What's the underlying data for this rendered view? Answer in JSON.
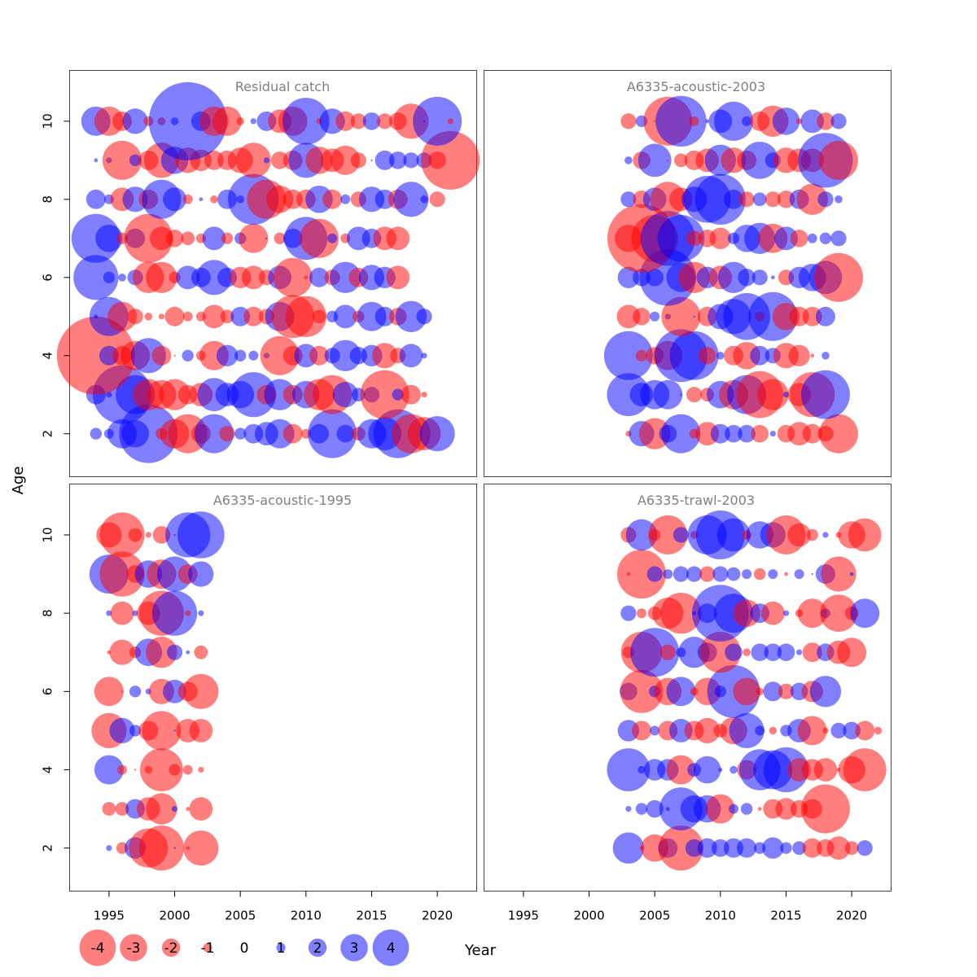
{
  "chart_data": {
    "type": "scatter",
    "subtype": "bubble-residuals",
    "ylabel": "Age",
    "xlabel": "Year",
    "xlim": [
      1992,
      2023
    ],
    "ylim": [
      0.9,
      11.3
    ],
    "x_ticks": [
      1995,
      2000,
      2005,
      2010,
      2015,
      2020
    ],
    "y_ticks": [
      2,
      4,
      6,
      8,
      10
    ],
    "ages": [
      2,
      3,
      4,
      5,
      6,
      7,
      8,
      9,
      10
    ],
    "colors": {
      "negative": "#FF0000",
      "positive": "#0000FF",
      "opacity": 0.5
    },
    "legend": {
      "values": [
        -4,
        -3,
        -2,
        -1,
        0,
        1,
        2,
        3,
        4
      ],
      "labels": [
        "-4",
        "-3",
        "-2",
        "-1",
        "0",
        "1",
        "2",
        "3",
        "4"
      ]
    },
    "panels": [
      {
        "title": "Residual catch",
        "x_start": 1994,
        "residuals": {
          "10": [
            1.5,
            -1.5,
            -1.0,
            1.3,
            -0.5,
            -0.4,
            0.4,
            4.0,
            1.0,
            -1.5,
            -1.5,
            -0.4,
            0.3,
            1.0,
            -1.2,
            -1.5,
            2.4,
            -0.3,
            1.3,
            -1.0,
            -0.8,
            0.9,
            -0.8,
            -0.9,
            -1.8,
            0.1,
            2.5,
            -0.3
          ],
          "9": [
            0.2,
            0.3,
            -2.0,
            0.6,
            -1.0,
            -1.8,
            1.4,
            -1.3,
            -1.1,
            -1.0,
            -1.0,
            -1.3,
            -1.8,
            0.3,
            -0.9,
            -1.0,
            1.8,
            -1.4,
            -1.2,
            -1.5,
            -0.8,
            0.1,
            1.0,
            0.9,
            0.8,
            0.8,
            -0.9,
            -3.0
          ],
          "8": [
            1.0,
            0.5,
            -1.2,
            1.3,
            -1.0,
            2.0,
            1.2,
            -0.5,
            0.2,
            -0.4,
            1.0,
            0.4,
            2.6,
            -2.0,
            -1.4,
            -1.0,
            -1.0,
            1.4,
            -1.0,
            0.5,
            -0.8,
            1.3,
            1.0,
            -1.0,
            1.8,
            0.4,
            -0.8
          ],
          "7": [
            2.5,
            1.4,
            -0.6,
            1.0,
            -2.5,
            -1.2,
            -0.9,
            -0.7,
            -0.5,
            1.2,
            -0.6,
            0.6,
            -1.5,
            0.1,
            -0.6,
            1.0,
            2.2,
            -2.0,
            0.5,
            -0.5,
            1.2,
            1.0,
            -1.2,
            -1.2
          ],
          "6": [
            2.3,
            0.6,
            0.4,
            0.8,
            -1.6,
            -1.6,
            -0.6,
            1.2,
            1.0,
            1.8,
            1.0,
            -1.1,
            -1.2,
            -0.8,
            1.2,
            -2.0,
            -0.2,
            1.0,
            -0.8,
            1.6,
            -1.0,
            1.3,
            1.1,
            -1.2
          ],
          "5": [
            0.2,
            2.0,
            -1.5,
            -0.8,
            -0.4,
            -0.3,
            -1.0,
            -0.5,
            -0.5,
            -1.2,
            -0.7,
            1.0,
            -1.0,
            -0.8,
            1.5,
            -2.2,
            -2.1,
            -0.7,
            0.6,
            1.2,
            -0.6,
            1.5,
            1.0,
            -0.9,
            1.6,
            0.8
          ],
          "4": [
            -4.0,
            1.0,
            -1.0,
            -1.5,
            1.8,
            -1.0,
            -0.1,
            0.6,
            -0.5,
            -1.5,
            1.1,
            0.6,
            0.5,
            0.3,
            -2.0,
            -1.0,
            1.2,
            -1.0,
            0.8,
            1.6,
            0.9,
            1.1,
            -1.3,
            -0.8,
            1.2,
            0.3
          ],
          "3": [
            1.0,
            0.3,
            3.0,
            2.0,
            -1.6,
            -1.5,
            -1.6,
            -1.0,
            -1.2,
            1.7,
            1.2,
            1.4,
            2.3,
            -1.0,
            1.6,
            -1.0,
            1.4,
            -1.6,
            -2.0,
            1.3,
            0.7,
            0.8,
            -2.5,
            0.6,
            -1.0,
            -0.3
          ],
          "2": [
            0.6,
            0.5,
            1.5,
            1.4,
            3.0,
            -0.6,
            -1.5,
            -2.0,
            -1.0,
            2.0,
            -0.8,
            0.6,
            1.0,
            1.2,
            1.5,
            -1.0,
            -0.5,
            1.0,
            2.5,
            0.9,
            -0.7,
            1.5,
            1.7,
            2.5,
            -2.0,
            -1.7,
            1.8
          ]
        }
      },
      {
        "title": "A6335-acoustic-2003",
        "x_start": 2003,
        "residuals": {
          "10": [
            -0.8,
            0.6,
            -0.1,
            -2.5,
            2.6,
            -0.5,
            0.2,
            1.2,
            2.0,
            0.5,
            -1.0,
            -1.6,
            1.4,
            -0.3,
            1.2,
            -0.9,
            0.8
          ],
          "9": [
            0.4,
            -0.9,
            1.7,
            -0.1,
            -0.7,
            -1.0,
            -1.2,
            1.6,
            -1.3,
            -1.0,
            1.9,
            0.8,
            -1.3,
            -1.2,
            -1.2,
            2.8,
            -2.0
          ],
          "8": [
            0.8,
            -0.9,
            1.2,
            -1.8,
            -1.2,
            1.3,
            2.4,
            2.6,
            1.0,
            -0.8,
            0.7,
            -0.8,
            -0.9,
            1.0,
            -1.6,
            0.8,
            0.4
          ],
          "7": [
            -1.4,
            -3.5,
            -2.4,
            2.8,
            2.4,
            -0.8,
            -0.9,
            -1.1,
            0.6,
            1.4,
            1.6,
            -1.5,
            1.2,
            -0.9,
            0.5,
            0.6,
            0.8
          ],
          "6": [
            1.1,
            0.9,
            0.9,
            2.9,
            1.5,
            -1.6,
            1.1,
            -1.2,
            1.6,
            0.9,
            0.8,
            0.2,
            -0.8,
            1.1,
            1.4,
            1.7,
            -2.5
          ],
          "5": [
            -1.2,
            -0.9,
            0.5,
            0.3,
            -2.0,
            0.1,
            -1.0,
            1.3,
            1.8,
            2.4,
            -0.5,
            2.5,
            -1.4,
            -1.0,
            -1.0,
            1.0
          ],
          "4": [
            2.5,
            -0.6,
            -0.9,
            -1.5,
            2.7,
            2.5,
            -0.9,
            0.4,
            -1.0,
            -1.4,
            1.0,
            0.8,
            -1.3,
            -1.1,
            -0.2,
            0.4
          ],
          "3": [
            2.2,
            1.2,
            1.5,
            1.5,
            0.1,
            -0.8,
            -0.7,
            1.4,
            -1.5,
            2.0,
            -2.4,
            -1.6,
            0.3,
            -1.2,
            -2.3,
            2.5
          ],
          "2": [
            -0.3,
            1.3,
            -1.6,
            0.9,
            2.0,
            -0.5,
            -1.2,
            1.0,
            0.9,
            0.9,
            -0.9,
            0.3,
            -0.9,
            -1.2,
            -1.0,
            -0.8,
            -2.0
          ]
        }
      },
      {
        "title": "A6335-acoustic-1995",
        "x_start": 1995,
        "residuals": {
          "10": [
            -1.3,
            -2.3,
            -0.7,
            -0.3,
            -0.9,
            0.1,
            2.3,
            2.4
          ],
          "9": [
            2.0,
            -2.3,
            -0.9,
            1.4,
            -1.5,
            1.8,
            -1.0,
            1.3
          ],
          "8": [
            0.3,
            -1.2,
            0.3,
            -1.2,
            -2.3,
            2.3,
            -0.3,
            0.3
          ],
          "7": [
            -0.2,
            -1.3,
            -0.6,
            1.4,
            -1.6,
            0.8,
            0.2,
            -0.7
          ],
          "6": [
            -1.5,
            -0.1,
            0.6,
            0.3,
            -1.3,
            1.2,
            -1.0,
            -1.8
          ],
          "5": [
            -1.8,
            1.3,
            0.6,
            -1.0,
            -2.0,
            0.1,
            -1.2,
            -1.2
          ],
          "4": [
            1.5,
            -0.5,
            -0.1,
            -0.4,
            -2.2,
            -0.6,
            -0.5,
            -0.3
          ],
          "3": [
            -0.7,
            -0.7,
            1.0,
            -1.2,
            -1.6,
            0.3,
            -0.2,
            -1.2
          ],
          "2": [
            0.3,
            -0.6,
            1.1,
            -2.0,
            -2.3,
            0.1,
            -0.2,
            -1.8
          ]
        }
      },
      {
        "title": "A6335-trawl-2003",
        "x_start": 2003,
        "residuals": {
          "10": [
            -0.8,
            1.6,
            -0.6,
            -2.0,
            0.8,
            -0.4,
            2.0,
            2.5,
            1.7,
            -0.5,
            1.4,
            1.3,
            -2.0,
            -1.2,
            -0.6,
            0.3,
            -0.3,
            -1.4,
            -1.7
          ],
          "9": [
            -0.2,
            -2.5,
            0.8,
            0.5,
            0.8,
            0.8,
            -0.8,
            0.8,
            0.7,
            0.5,
            -0.6,
            0.5,
            -0.2,
            0.5,
            0.1,
            1.0,
            -1.8,
            0.2
          ],
          "8": [
            0.8,
            -0.5,
            -0.7,
            -1.6,
            -2.1,
            0.2,
            1.0,
            2.9,
            2.0,
            -1.4,
            1.0,
            -1.2,
            0.3,
            -0.4,
            -1.5,
            0.5,
            -1.9,
            -0.7,
            1.5
          ],
          "7": [
            -0.6,
            -2.1,
            2.5,
            -0.8,
            0.5,
            1.6,
            1.0,
            -2.1,
            0.9,
            -0.4,
            0.9,
            0.9,
            0.9,
            0.3,
            -1.0,
            0.9,
            -1.2,
            -1.5
          ],
          "6": [
            0.9,
            -2.2,
            0.6,
            -1.4,
            1.5,
            -0.4,
            -1.4,
            0.6,
            2.7,
            -1.4,
            -0.4,
            1.0,
            -0.8,
            0.9,
            -1.1,
            1.6
          ],
          "5": [
            1.1,
            -1.0,
            0.5,
            -1.0,
            1.2,
            -1.0,
            -1.3,
            -0.7,
            -1.4,
            1.8,
            0.5,
            -0.4,
            0.6,
            1.2,
            -1.5,
            -0.3,
            0.8,
            0.9,
            -1.0,
            -0.4
          ],
          "4": [
            2.2,
            0.4,
            1.1,
            1.1,
            -1.5,
            0.7,
            1.4,
            0.2,
            0.4,
            -1.0,
            2.1,
            2.0,
            2.3,
            -1.2,
            -1.1,
            -1.2,
            -0.2,
            -1.4,
            -2.2
          ],
          "3": [
            0.3,
            0.6,
            0.9,
            0.2,
            2.2,
            1.4,
            1.4,
            -1.5,
            0.5,
            0.6,
            -0.2,
            -1.0,
            -1.1,
            -0.9,
            -1.0,
            -2.5
          ],
          "2": [
            1.6,
            -0.2,
            -1.4,
            1.0,
            -2.3,
            0.9,
            1.0,
            0.9,
            1.0,
            1.0,
            0.6,
            1.1,
            0.6,
            0.7,
            -1.0,
            -0.9,
            -1.2,
            -0.7,
            0.8
          ]
        }
      }
    ]
  }
}
